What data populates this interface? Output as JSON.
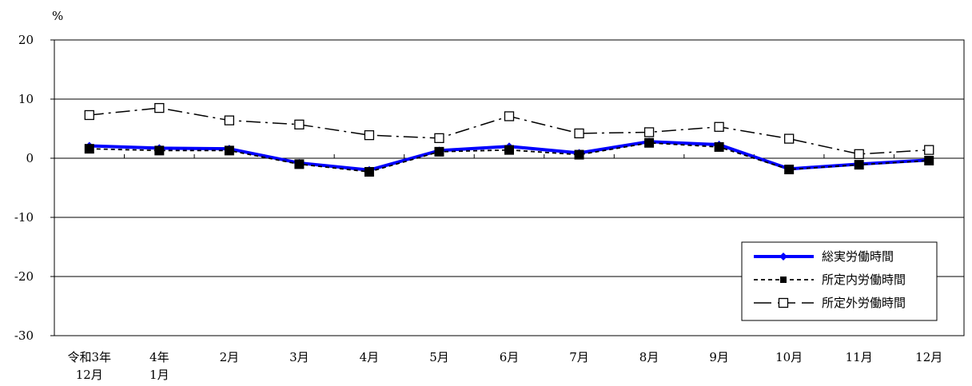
{
  "chart_data": {
    "type": "line",
    "ylabel": "%",
    "ylim": [
      -30,
      20
    ],
    "yticks": [
      20,
      10,
      0,
      -10,
      -20,
      -30
    ],
    "categories": [
      [
        "令和3年",
        "12月"
      ],
      [
        "4年",
        "1月"
      ],
      [
        "2月"
      ],
      [
        "3月"
      ],
      [
        "4月"
      ],
      [
        "5月"
      ],
      [
        "6月"
      ],
      [
        "7月"
      ],
      [
        "8月"
      ],
      [
        "9月"
      ],
      [
        "10月"
      ],
      [
        "11月"
      ],
      [
        "12月"
      ]
    ],
    "series": [
      {
        "name": "総実労働時間",
        "color": "#0000ff",
        "marker": "diamond",
        "values": [
          2.1,
          1.7,
          1.6,
          -0.8,
          -2.0,
          1.3,
          2.0,
          0.9,
          2.8,
          2.3,
          -1.8,
          -1.0,
          -0.3
        ]
      },
      {
        "name": "所定内労働時間",
        "color": "#000000",
        "marker": "square-filled",
        "values": [
          1.6,
          1.3,
          1.3,
          -1.0,
          -2.3,
          1.1,
          1.4,
          0.6,
          2.6,
          1.9,
          -1.9,
          -1.1,
          -0.4
        ]
      },
      {
        "name": "所定外労働時間",
        "color": "#000000",
        "marker": "square-open",
        "values": [
          7.3,
          8.5,
          6.4,
          5.7,
          3.9,
          3.4,
          7.1,
          4.2,
          4.4,
          5.3,
          3.3,
          0.7,
          1.4
        ]
      }
    ],
    "grid": true,
    "legend": "bottom-right"
  }
}
